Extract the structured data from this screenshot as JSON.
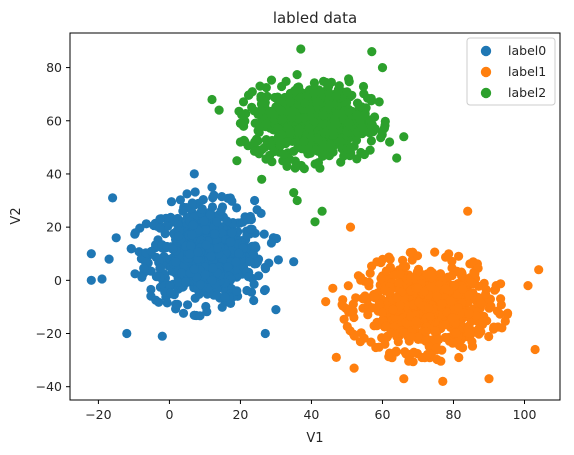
{
  "chart_data": {
    "type": "scatter",
    "title": "labled data",
    "xlabel": "V1",
    "ylabel": "V2",
    "xlim": [
      -28,
      110
    ],
    "ylim": [
      -45,
      93
    ],
    "xticks": [
      -20,
      0,
      20,
      40,
      60,
      80,
      100
    ],
    "yticks": [
      -40,
      -20,
      0,
      20,
      40,
      60,
      80
    ],
    "grid": false,
    "legend_position": "top-right",
    "series": [
      {
        "name": "label0",
        "color": "#1f77b4",
        "center": [
          10,
          10
        ],
        "spread": [
          8,
          9
        ],
        "count": 700,
        "points": [
          [
            -22,
            10
          ],
          [
            -22,
            0
          ],
          [
            -19,
            0.5
          ],
          [
            -16,
            31
          ],
          [
            -12,
            -20
          ],
          [
            -2,
            -21
          ],
          [
            7,
            40
          ],
          [
            12,
            35
          ],
          [
            -15,
            16
          ],
          [
            -17,
            8
          ],
          [
            22,
            23
          ],
          [
            24,
            30
          ],
          [
            35,
            7
          ],
          [
            27,
            -20
          ],
          [
            30,
            -11
          ]
        ]
      },
      {
        "name": "label1",
        "color": "#ff7f0e",
        "center": [
          72,
          -10
        ],
        "spread": [
          9,
          8
        ],
        "count": 700,
        "points": [
          [
            104,
            4
          ],
          [
            103,
            -26
          ],
          [
            84,
            26
          ],
          [
            51,
            20
          ],
          [
            47,
            -29
          ],
          [
            77,
            -38
          ],
          [
            66,
            -37
          ],
          [
            101,
            -2
          ],
          [
            44,
            -8
          ],
          [
            46,
            -3
          ],
          [
            52,
            -33
          ],
          [
            90,
            -37
          ]
        ]
      },
      {
        "name": "label2",
        "color": "#2ca02c",
        "center": [
          40,
          60
        ],
        "spread": [
          8,
          7
        ],
        "count": 700,
        "points": [
          [
            37,
            87
          ],
          [
            57,
            86
          ],
          [
            60,
            80
          ],
          [
            12,
            68
          ],
          [
            14,
            64
          ],
          [
            20,
            59
          ],
          [
            20,
            52
          ],
          [
            19,
            45
          ],
          [
            24,
            52
          ],
          [
            62,
            52
          ],
          [
            66,
            54
          ],
          [
            64,
            46
          ],
          [
            43,
            26
          ],
          [
            41,
            22
          ],
          [
            36,
            30
          ],
          [
            35,
            33
          ],
          [
            26,
            38
          ],
          [
            38,
            42
          ]
        ]
      }
    ]
  }
}
